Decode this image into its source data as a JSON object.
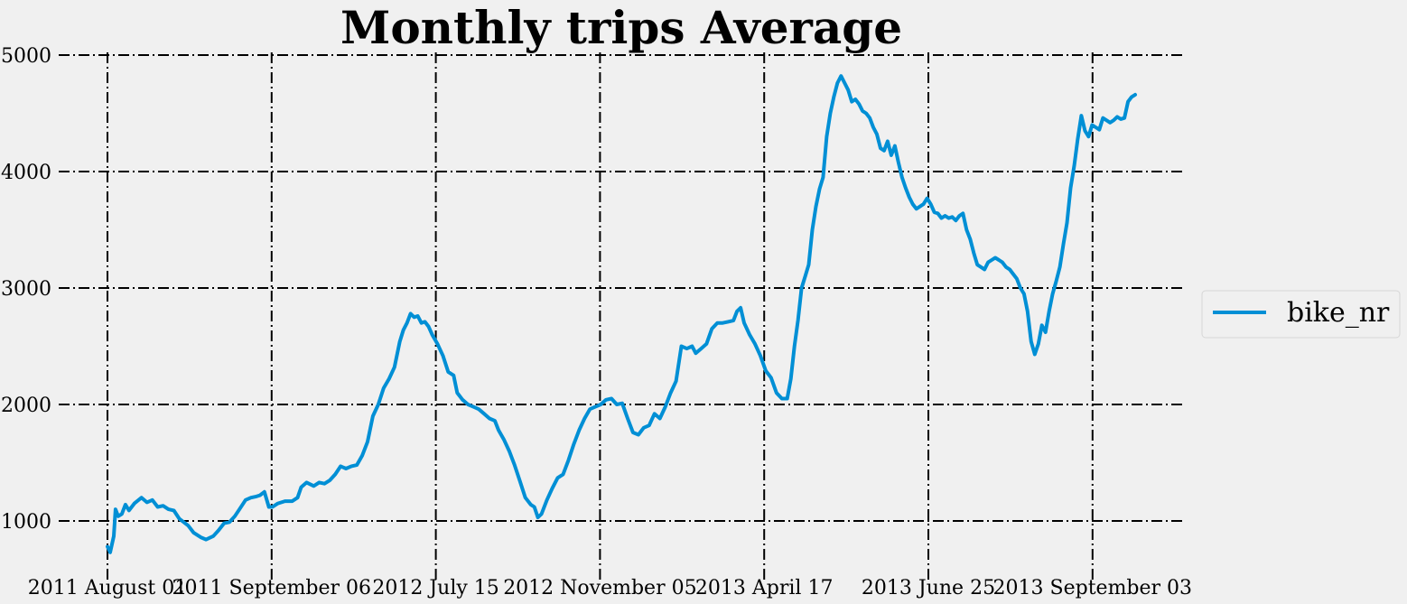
{
  "chart_data": {
    "type": "line",
    "title": "Monthly trips Average",
    "xlabel": "",
    "ylabel": "",
    "ylim": [
      550,
      5000
    ],
    "grid": true,
    "legend_position": "center-right",
    "yticks": [
      1000,
      2000,
      3000,
      4000,
      5000
    ],
    "xticks": [
      "2011 August 01",
      "2011 September 06",
      "2012 July 15",
      "2012 November 05",
      "2013 April 17",
      "2013 June 25",
      "2013 September 03"
    ],
    "series": [
      {
        "name": "bike_nr",
        "color": "#008fd5",
        "values": [
          [
            0,
            780
          ],
          [
            3,
            730
          ],
          [
            7,
            870
          ],
          [
            9,
            1100
          ],
          [
            12,
            1040
          ],
          [
            16,
            1060
          ],
          [
            20,
            1140
          ],
          [
            24,
            1090
          ],
          [
            30,
            1150
          ],
          [
            38,
            1200
          ],
          [
            44,
            1160
          ],
          [
            50,
            1180
          ],
          [
            56,
            1120
          ],
          [
            62,
            1130
          ],
          [
            68,
            1100
          ],
          [
            74,
            1090
          ],
          [
            80,
            1020
          ],
          [
            90,
            960
          ],
          [
            96,
            900
          ],
          [
            104,
            860
          ],
          [
            110,
            840
          ],
          [
            118,
            870
          ],
          [
            124,
            920
          ],
          [
            130,
            980
          ],
          [
            136,
            990
          ],
          [
            142,
            1040
          ],
          [
            148,
            1110
          ],
          [
            154,
            1180
          ],
          [
            160,
            1200
          ],
          [
            166,
            1210
          ],
          [
            170,
            1220
          ],
          [
            175,
            1250
          ],
          [
            180,
            1120
          ],
          [
            184,
            1120
          ],
          [
            190,
            1150
          ],
          [
            198,
            1170
          ],
          [
            206,
            1170
          ],
          [
            212,
            1200
          ],
          [
            216,
            1290
          ],
          [
            222,
            1330
          ],
          [
            230,
            1300
          ],
          [
            236,
            1330
          ],
          [
            242,
            1320
          ],
          [
            248,
            1350
          ],
          [
            254,
            1400
          ],
          [
            260,
            1470
          ],
          [
            266,
            1450
          ],
          [
            272,
            1470
          ],
          [
            278,
            1480
          ],
          [
            284,
            1560
          ],
          [
            290,
            1680
          ],
          [
            296,
            1900
          ],
          [
            302,
            2000
          ],
          [
            308,
            2140
          ],
          [
            314,
            2220
          ],
          [
            320,
            2320
          ],
          [
            326,
            2540
          ],
          [
            330,
            2640
          ],
          [
            334,
            2700
          ],
          [
            338,
            2780
          ],
          [
            342,
            2750
          ],
          [
            346,
            2760
          ],
          [
            350,
            2700
          ],
          [
            354,
            2710
          ],
          [
            358,
            2670
          ],
          [
            362,
            2600
          ],
          [
            368,
            2520
          ],
          [
            374,
            2420
          ],
          [
            380,
            2280
          ],
          [
            386,
            2250
          ],
          [
            390,
            2100
          ],
          [
            396,
            2040
          ],
          [
            402,
            2000
          ],
          [
            408,
            1980
          ],
          [
            414,
            1960
          ],
          [
            420,
            1920
          ],
          [
            426,
            1880
          ],
          [
            432,
            1860
          ],
          [
            436,
            1780
          ],
          [
            442,
            1700
          ],
          [
            448,
            1600
          ],
          [
            454,
            1480
          ],
          [
            460,
            1340
          ],
          [
            466,
            1200
          ],
          [
            472,
            1140
          ],
          [
            476,
            1120
          ],
          [
            480,
            1030
          ],
          [
            484,
            1060
          ],
          [
            490,
            1180
          ],
          [
            496,
            1280
          ],
          [
            502,
            1370
          ],
          [
            508,
            1400
          ],
          [
            514,
            1520
          ],
          [
            520,
            1660
          ],
          [
            526,
            1780
          ],
          [
            532,
            1880
          ],
          [
            538,
            1960
          ],
          [
            544,
            1980
          ],
          [
            550,
            2000
          ],
          [
            556,
            2040
          ],
          [
            562,
            2050
          ],
          [
            568,
            2000
          ],
          [
            574,
            2010
          ],
          [
            580,
            1880
          ],
          [
            586,
            1760
          ],
          [
            592,
            1740
          ],
          [
            598,
            1800
          ],
          [
            604,
            1820
          ],
          [
            610,
            1920
          ],
          [
            616,
            1880
          ],
          [
            622,
            1980
          ],
          [
            628,
            2100
          ],
          [
            634,
            2200
          ],
          [
            640,
            2500
          ],
          [
            646,
            2480
          ],
          [
            652,
            2500
          ],
          [
            656,
            2440
          ],
          [
            662,
            2480
          ],
          [
            668,
            2520
          ],
          [
            674,
            2650
          ],
          [
            680,
            2700
          ],
          [
            686,
            2700
          ],
          [
            692,
            2710
          ],
          [
            698,
            2720
          ],
          [
            702,
            2800
          ],
          [
            706,
            2830
          ],
          [
            710,
            2700
          ],
          [
            716,
            2600
          ],
          [
            722,
            2520
          ],
          [
            728,
            2420
          ],
          [
            734,
            2290
          ],
          [
            740,
            2230
          ],
          [
            746,
            2100
          ],
          [
            752,
            2050
          ],
          [
            758,
            2050
          ],
          [
            762,
            2220
          ],
          [
            766,
            2500
          ],
          [
            770,
            2720
          ],
          [
            774,
            3000
          ],
          [
            778,
            3100
          ],
          [
            782,
            3200
          ],
          [
            786,
            3500
          ],
          [
            790,
            3700
          ],
          [
            794,
            3850
          ],
          [
            798,
            3950
          ],
          [
            802,
            4300
          ],
          [
            806,
            4500
          ],
          [
            810,
            4640
          ],
          [
            814,
            4760
          ],
          [
            818,
            4820
          ],
          [
            822,
            4760
          ],
          [
            826,
            4700
          ],
          [
            830,
            4600
          ],
          [
            834,
            4620
          ],
          [
            838,
            4580
          ],
          [
            842,
            4520
          ],
          [
            846,
            4500
          ],
          [
            850,
            4460
          ],
          [
            854,
            4380
          ],
          [
            858,
            4320
          ],
          [
            862,
            4200
          ],
          [
            866,
            4180
          ],
          [
            870,
            4260
          ],
          [
            874,
            4140
          ],
          [
            878,
            4220
          ],
          [
            882,
            4080
          ],
          [
            886,
            3950
          ],
          [
            890,
            3860
          ],
          [
            894,
            3780
          ],
          [
            898,
            3720
          ],
          [
            902,
            3680
          ],
          [
            906,
            3700
          ],
          [
            910,
            3720
          ],
          [
            914,
            3770
          ],
          [
            918,
            3720
          ],
          [
            922,
            3650
          ],
          [
            926,
            3640
          ],
          [
            930,
            3600
          ],
          [
            934,
            3620
          ],
          [
            938,
            3600
          ],
          [
            942,
            3610
          ],
          [
            946,
            3580
          ],
          [
            950,
            3620
          ],
          [
            954,
            3640
          ],
          [
            958,
            3500
          ],
          [
            962,
            3420
          ],
          [
            966,
            3300
          ],
          [
            970,
            3200
          ],
          [
            974,
            3180
          ],
          [
            978,
            3160
          ],
          [
            982,
            3220
          ],
          [
            986,
            3240
          ],
          [
            990,
            3260
          ],
          [
            994,
            3240
          ],
          [
            998,
            3220
          ],
          [
            1002,
            3180
          ],
          [
            1006,
            3160
          ],
          [
            1010,
            3120
          ],
          [
            1014,
            3080
          ],
          [
            1018,
            3000
          ],
          [
            1022,
            2950
          ],
          [
            1026,
            2800
          ],
          [
            1030,
            2540
          ],
          [
            1034,
            2430
          ],
          [
            1038,
            2520
          ],
          [
            1042,
            2680
          ],
          [
            1046,
            2620
          ],
          [
            1050,
            2800
          ],
          [
            1054,
            2950
          ],
          [
            1058,
            3060
          ],
          [
            1062,
            3180
          ],
          [
            1066,
            3380
          ],
          [
            1070,
            3560
          ],
          [
            1074,
            3860
          ],
          [
            1078,
            4050
          ],
          [
            1082,
            4280
          ],
          [
            1086,
            4480
          ],
          [
            1090,
            4350
          ],
          [
            1094,
            4300
          ],
          [
            1098,
            4400
          ],
          [
            1102,
            4380
          ],
          [
            1106,
            4360
          ],
          [
            1110,
            4460
          ],
          [
            1114,
            4440
          ],
          [
            1118,
            4420
          ],
          [
            1122,
            4440
          ],
          [
            1126,
            4470
          ],
          [
            1130,
            4450
          ],
          [
            1134,
            4460
          ],
          [
            1138,
            4600
          ],
          [
            1142,
            4640
          ],
          [
            1146,
            4660
          ]
        ]
      }
    ]
  }
}
